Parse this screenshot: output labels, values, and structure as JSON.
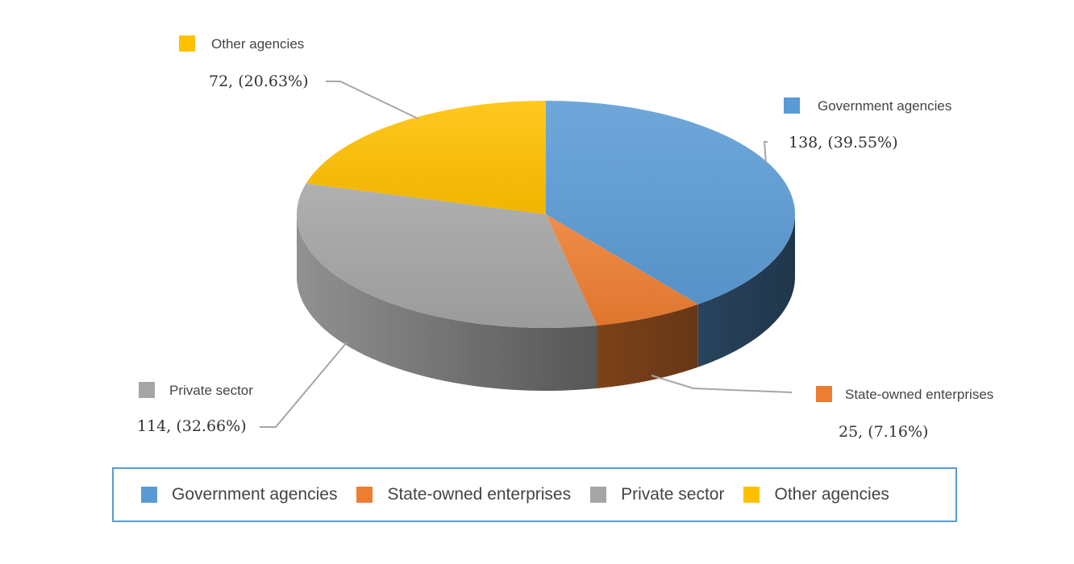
{
  "chart_data": {
    "type": "pie",
    "style": "3d",
    "series": [
      {
        "name": "Government agencies",
        "value": 138,
        "value_label": "138, (39.55%)",
        "color": "#5b9bd5"
      },
      {
        "name": "State-owned enterprises",
        "value": 25,
        "value_label": "25, (7.16%)",
        "color": "#ed7d31"
      },
      {
        "name": "Private sector",
        "value": 114,
        "value_label": "114, (32.66%)",
        "color": "#a5a5a5"
      },
      {
        "name": "Other agencies",
        "value": 72,
        "value_label": "72, (20.63%)",
        "color": "#ffc000"
      }
    ],
    "legend_position": "bottom",
    "legend": [
      "Government agencies",
      "State-owned enterprises",
      "Private sector",
      "Other agencies"
    ]
  }
}
